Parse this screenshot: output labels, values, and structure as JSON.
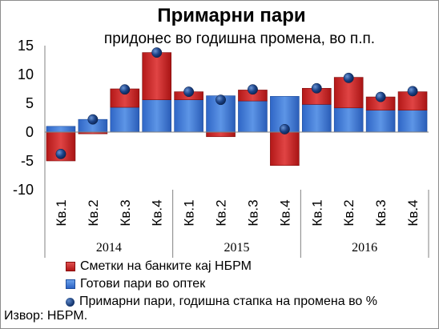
{
  "chart_data": {
    "type": "bar",
    "title": "Примарни пари",
    "subtitle": "придонес во годишна промена, во п.п.",
    "ylim": [
      -10,
      15
    ],
    "yticks": [
      "15",
      "10",
      "5",
      "0",
      "-5",
      "-10"
    ],
    "categories": [
      "Кв.1",
      "Кв.2",
      "Кв.3",
      "Кв.4",
      "Кв.1",
      "Кв.2",
      "Кв.3",
      "Кв.4",
      "Кв.1",
      "Кв.2",
      "Кв.3",
      "Кв.4"
    ],
    "years": [
      "2014",
      "2015",
      "2016"
    ],
    "series": [
      {
        "name": "Готови пари во оптек",
        "kind": "stacked-bar",
        "color": "#3a74d4",
        "values": [
          1.0,
          2.2,
          4.3,
          5.6,
          5.6,
          6.3,
          5.4,
          6.2,
          4.8,
          4.2,
          3.8,
          3.8
        ]
      },
      {
        "name": "Сметки на банките кај НБРМ",
        "kind": "stacked-bar",
        "color": "#c82020",
        "values": [
          -5.0,
          -0.3,
          3.2,
          8.2,
          1.4,
          -0.8,
          1.9,
          -5.8,
          2.8,
          5.3,
          2.3,
          3.2
        ]
      },
      {
        "name": "Примарни пари, годишна стапка на промена во %",
        "kind": "marker",
        "color": "#1a3f80",
        "values": [
          -3.8,
          2.2,
          7.4,
          13.8,
          7.0,
          5.6,
          7.4,
          0.5,
          7.6,
          9.4,
          6.1,
          7.1
        ]
      }
    ],
    "legend_position": "bottom",
    "grid": false
  },
  "source": "Извор: НБРМ."
}
